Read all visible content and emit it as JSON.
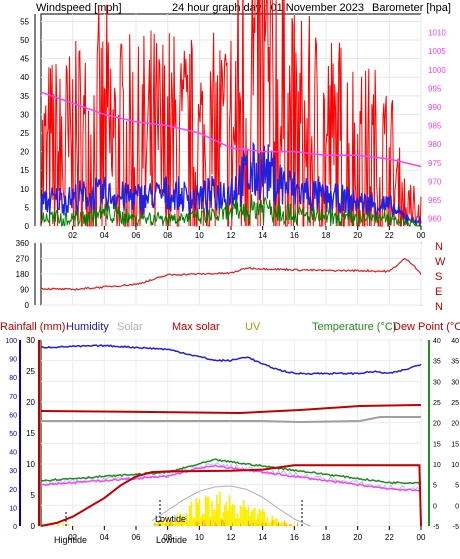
{
  "header": {
    "windspeed_label": "Windspeed [mph]",
    "title": "24 hour graph day : 01 November 2023",
    "barometer_label": "Barometer [hpa]"
  },
  "colors": {
    "gust": "#ff0000",
    "wind": "#2020e0",
    "wind_low": "#008000",
    "barometer": "#ff40ff",
    "direction": "#e02020",
    "humidity": "#2020e0",
    "rain_axis": "#c00000",
    "solar": "#a0a0a0",
    "uv": "#c09000",
    "temp": "#228b22",
    "dew": "#ff0000",
    "maxsolar_curve": "#b0b0b0",
    "solar_fill": "#ffee00",
    "rain_line": "#c00000",
    "frame": "#000000"
  },
  "chart_data": [
    {
      "type": "line",
      "name": "wind",
      "x_ticks": [
        "02",
        "04",
        "06",
        "08",
        "10",
        "12",
        "14",
        "16",
        "18",
        "20",
        "22",
        "00"
      ],
      "y_left_ticks": [
        "0",
        "5",
        "10",
        "15",
        "20",
        "25",
        "30",
        "35",
        "40",
        "45",
        "50",
        "55"
      ],
      "y_left_range": [
        0,
        57
      ],
      "y_right_ticks": [
        "960",
        "965",
        "970",
        "975",
        "980",
        "985",
        "990",
        "995",
        "1000",
        "1005",
        "1010"
      ],
      "y_right_range": [
        958,
        1015
      ],
      "barometer_series": {
        "x": [
          0,
          2,
          4,
          6,
          8,
          10,
          12,
          14,
          16,
          18,
          20,
          22,
          24
        ],
        "values": [
          994,
          991,
          988,
          986,
          985,
          983,
          979,
          978,
          978,
          977,
          977,
          976,
          974
        ]
      },
      "gust_series": {
        "x": [
          0,
          2,
          4,
          6,
          8,
          10,
          12,
          13,
          14,
          16,
          18,
          20,
          22,
          23,
          24
        ],
        "values": [
          12,
          14,
          16,
          14,
          15,
          14,
          16,
          27,
          28,
          16,
          15,
          13,
          11,
          4,
          2
        ]
      },
      "wind_series": {
        "x": [
          0,
          2,
          4,
          6,
          8,
          10,
          12,
          13,
          14,
          16,
          18,
          20,
          22,
          23,
          24
        ],
        "values": [
          6,
          7,
          8,
          7,
          8,
          7,
          9,
          13,
          14,
          9,
          7,
          6,
          5,
          2,
          1
        ]
      },
      "low_series": {
        "x": [
          0,
          2,
          4,
          6,
          8,
          10,
          12,
          13,
          14,
          16,
          18,
          20,
          22,
          23,
          24
        ],
        "values": [
          2,
          2,
          3,
          2,
          2,
          2,
          3,
          4,
          5,
          3,
          2,
          2,
          2,
          1,
          0
        ]
      }
    },
    {
      "type": "line",
      "name": "direction",
      "y_ticks": [
        "360",
        "270",
        "180",
        "90",
        "0"
      ],
      "compass": [
        "N",
        "W",
        "S",
        "E",
        "N"
      ],
      "y_range": [
        0,
        360
      ],
      "series": {
        "x": [
          0,
          2,
          4,
          6,
          7,
          8,
          10,
          12,
          13,
          14,
          16,
          18,
          20,
          22,
          23,
          23.5,
          24
        ],
        "values": [
          95,
          90,
          105,
          120,
          145,
          175,
          180,
          185,
          215,
          210,
          205,
          200,
          200,
          195,
          270,
          235,
          180
        ]
      }
    },
    {
      "type": "line",
      "name": "weather",
      "labels": {
        "rainfall": "Rainfall (mm)",
        "humidity": "Humidity",
        "solar": "Solar",
        "max_solar": "Max solar",
        "uv": "UV",
        "temperature": "Temperature (°C)",
        "dew_point": "Dew Point (°C)"
      },
      "rain_ticks": [
        "0",
        "5",
        "10",
        "15",
        "20",
        "25",
        "30"
      ],
      "humidity_ticks": [
        "0",
        "10",
        "20",
        "30",
        "40",
        "50",
        "60",
        "70",
        "80",
        "90",
        "100"
      ],
      "temp_ticks": [
        "-5",
        "0",
        "5",
        "10",
        "15",
        "20",
        "25",
        "30",
        "35",
        "40"
      ],
      "dew_ticks": [
        "-5",
        "0",
        "5",
        "10",
        "15",
        "20",
        "25",
        "30",
        "35",
        "40"
      ],
      "tides": {
        "high": "Hightide",
        "low1": "Lowtide",
        "low2": "Lowtide"
      },
      "humidity_series": {
        "x": [
          0,
          4,
          8,
          9,
          11,
          12,
          13,
          14,
          15,
          16,
          17,
          18,
          20,
          21,
          22,
          23,
          24
        ],
        "values": [
          96,
          97,
          95,
          93,
          89,
          89,
          91,
          87,
          84,
          82,
          82,
          82,
          82,
          83,
          82,
          84,
          87
        ]
      },
      "rain_series": {
        "x": [
          0,
          1,
          2,
          3,
          4,
          5,
          6,
          7,
          8,
          12,
          14,
          16,
          20,
          23.9,
          24
        ],
        "values": [
          0,
          0.5,
          1.5,
          3,
          4.5,
          6.5,
          8,
          8.7,
          8.8,
          8.9,
          9.1,
          9.8,
          9.8,
          9.8,
          0
        ]
      },
      "rain_axis_max": 30,
      "maxsolar_series": {
        "x": [
          6,
          7,
          8,
          9,
          10,
          11,
          12,
          13,
          14,
          15,
          16,
          17
        ],
        "values": [
          0,
          60,
          180,
          300,
          400,
          450,
          460,
          420,
          330,
          200,
          80,
          0
        ]
      },
      "solar_series": {
        "x": [
          7,
          8,
          9,
          10,
          11,
          12,
          13,
          14,
          15,
          16
        ],
        "values": [
          10,
          80,
          160,
          260,
          300,
          250,
          240,
          150,
          60,
          5
        ]
      },
      "temp_series": {
        "x": [
          0,
          2,
          4,
          6,
          8,
          9,
          10,
          11,
          12,
          14,
          16,
          18,
          20,
          22,
          24
        ],
        "values": [
          6,
          6.5,
          7,
          7.5,
          8,
          9,
          10,
          11,
          10.5,
          9.5,
          8.5,
          7.5,
          6.5,
          5.5,
          5.5
        ]
      },
      "dew_series": {
        "x": [
          0,
          2,
          4,
          6,
          8,
          9,
          10,
          11,
          12,
          14,
          16,
          18,
          20,
          22,
          24
        ],
        "values": [
          5,
          5.5,
          6,
          6.5,
          7,
          8,
          9,
          9.5,
          9,
          8,
          7,
          6,
          5,
          4,
          3.5
        ]
      },
      "temp_axis_range": [
        -5,
        40
      ]
    }
  ]
}
